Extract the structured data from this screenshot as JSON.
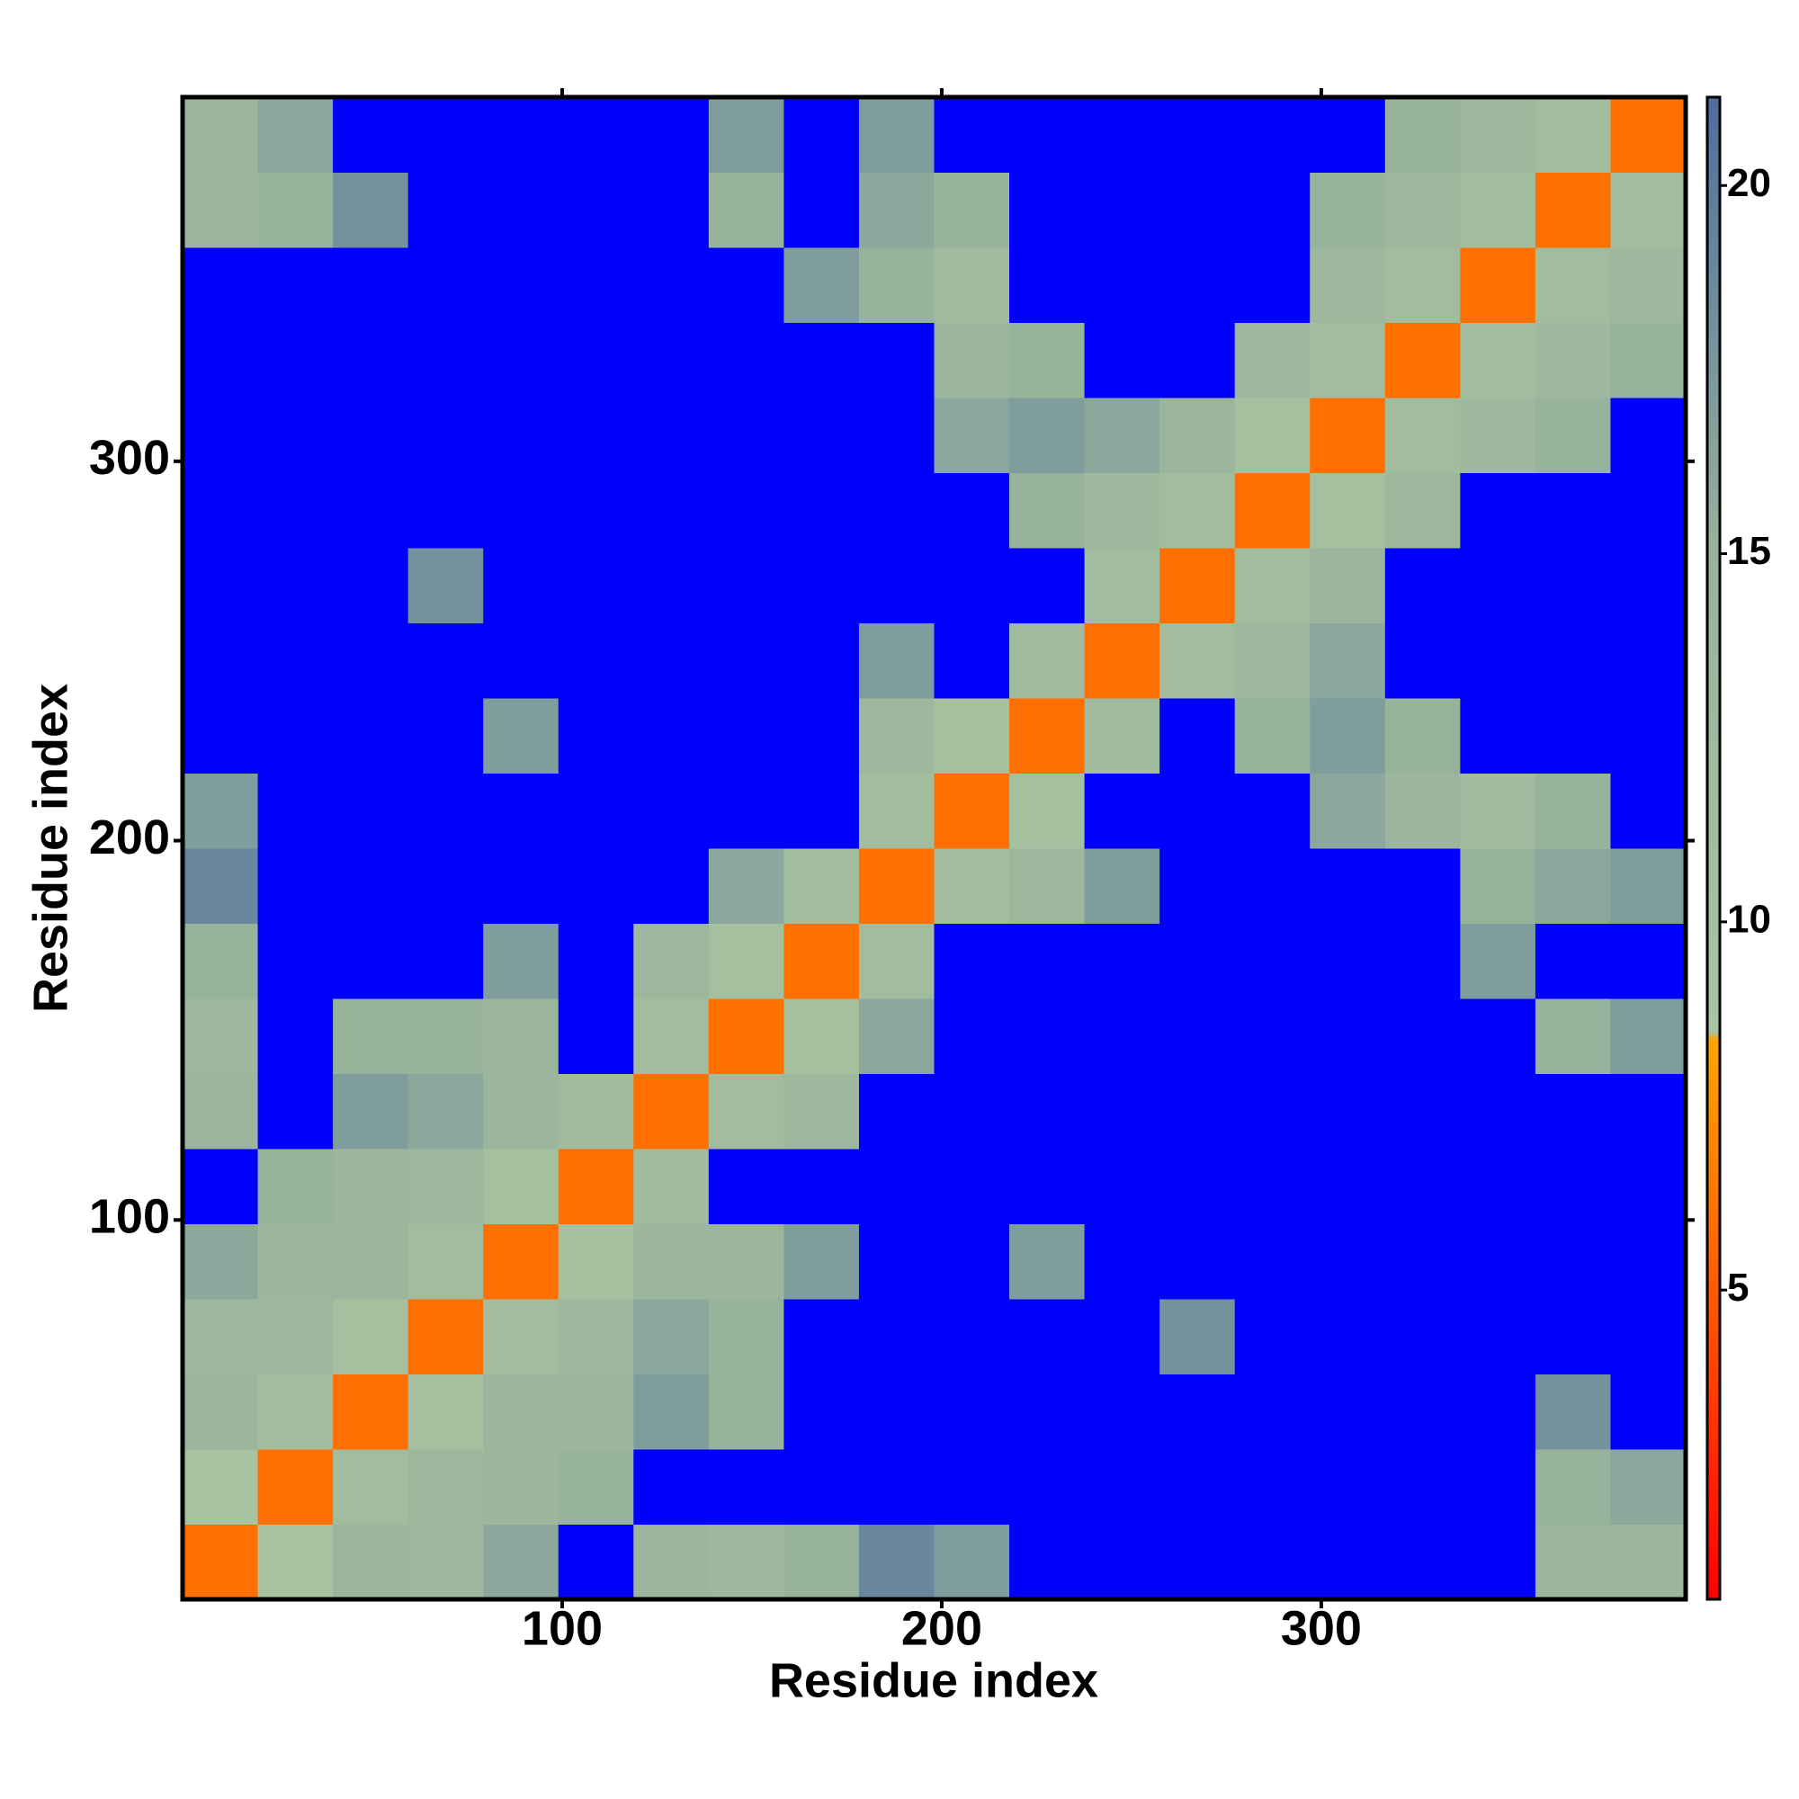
{
  "chart_data": {
    "type": "heatmap",
    "xlabel": "Residue index",
    "ylabel": "Residue index",
    "xlim": [
      0,
      396
    ],
    "ylim": [
      0,
      396
    ],
    "xticks": [
      100,
      200,
      300
    ],
    "yticks": [
      100,
      200,
      300
    ],
    "xbins": [
      0,
      19.8,
      39.6,
      59.4,
      79.2,
      99,
      118.8,
      138.6,
      158.4,
      178.2,
      198,
      217.8,
      237.6,
      257.4,
      277.2,
      297,
      316.8,
      336.6,
      356.4,
      376.2,
      396
    ],
    "ybins": [
      0,
      19.8,
      39.6,
      59.4,
      79.2,
      99,
      118.8,
      138.6,
      158.4,
      178.2,
      198,
      217.8,
      237.6,
      257.4,
      277.2,
      297,
      316.8,
      336.6,
      356.4,
      376.2,
      396
    ],
    "z": [
      [
        6,
        9,
        14,
        13,
        16,
        25,
        14,
        13,
        15,
        19,
        17,
        25,
        25,
        25,
        25,
        25,
        25,
        25,
        14,
        14
      ],
      [
        9,
        6,
        11,
        13,
        14,
        15,
        25,
        25,
        25,
        25,
        25,
        25,
        25,
        25,
        25,
        25,
        25,
        25,
        15,
        16
      ],
      [
        14,
        11,
        6,
        10,
        14,
        14,
        17,
        15,
        25,
        25,
        25,
        25,
        25,
        25,
        25,
        25,
        25,
        25,
        18,
        25
      ],
      [
        13,
        13,
        10,
        6,
        11,
        13,
        16,
        15,
        25,
        25,
        25,
        25,
        25,
        18,
        25,
        25,
        25,
        25,
        25,
        25
      ],
      [
        16,
        14,
        14,
        11,
        6,
        10,
        14,
        14,
        17,
        25,
        25,
        17,
        25,
        25,
        25,
        25,
        25,
        25,
        25,
        25
      ],
      [
        25,
        15,
        14,
        13,
        10,
        6,
        12,
        25,
        25,
        25,
        25,
        25,
        25,
        25,
        25,
        25,
        25,
        25,
        25,
        25
      ],
      [
        14,
        25,
        17,
        16,
        14,
        12,
        6,
        11,
        13,
        25,
        25,
        25,
        25,
        25,
        25,
        25,
        25,
        25,
        25,
        25
      ],
      [
        13,
        25,
        15,
        15,
        14,
        25,
        11,
        6,
        10,
        16,
        25,
        25,
        25,
        25,
        25,
        25,
        25,
        25,
        15,
        17
      ],
      [
        15,
        25,
        25,
        25,
        17,
        25,
        13,
        10,
        6,
        11,
        25,
        25,
        25,
        25,
        25,
        25,
        25,
        17,
        25,
        25
      ],
      [
        19,
        25,
        25,
        25,
        25,
        25,
        25,
        16,
        11,
        6,
        11,
        13,
        17,
        25,
        25,
        25,
        25,
        15,
        16,
        17
      ],
      [
        17,
        25,
        25,
        25,
        25,
        25,
        25,
        25,
        25,
        11,
        6,
        10,
        25,
        25,
        25,
        16,
        14,
        12,
        15,
        25
      ],
      [
        25,
        25,
        25,
        25,
        17,
        25,
        25,
        25,
        25,
        13,
        10,
        6,
        12,
        25,
        15,
        17,
        15,
        25,
        25,
        25
      ],
      [
        25,
        25,
        25,
        25,
        25,
        25,
        25,
        25,
        25,
        17,
        25,
        12,
        6,
        11,
        13,
        16,
        25,
        25,
        25,
        25
      ],
      [
        25,
        25,
        25,
        18,
        25,
        25,
        25,
        25,
        25,
        25,
        25,
        25,
        11,
        6,
        11,
        14,
        25,
        25,
        25,
        25
      ],
      [
        25,
        25,
        25,
        25,
        25,
        25,
        25,
        25,
        25,
        25,
        25,
        15,
        13,
        11,
        6,
        10,
        13,
        25,
        25,
        25
      ],
      [
        25,
        25,
        25,
        25,
        25,
        25,
        25,
        25,
        25,
        25,
        16,
        17,
        16,
        14,
        10,
        6,
        11,
        13,
        15,
        25
      ],
      [
        25,
        25,
        25,
        25,
        25,
        25,
        25,
        25,
        25,
        25,
        14,
        15,
        25,
        25,
        13,
        11,
        6,
        11,
        13,
        15
      ],
      [
        25,
        25,
        25,
        25,
        25,
        25,
        25,
        25,
        17,
        15,
        12,
        25,
        25,
        25,
        25,
        13,
        11,
        6,
        11,
        13
      ],
      [
        14,
        15,
        18,
        25,
        25,
        25,
        25,
        15,
        25,
        16,
        15,
        25,
        25,
        25,
        25,
        15,
        13,
        11,
        6,
        11
      ],
      [
        14,
        16,
        25,
        25,
        25,
        25,
        25,
        17,
        25,
        17,
        25,
        25,
        25,
        25,
        25,
        25,
        15,
        13,
        11,
        6
      ]
    ],
    "clim": [
      0.8,
      21.2
    ],
    "cticks": [
      5,
      10,
      15,
      20
    ],
    "colorscale": [
      {
        "value": 0.8,
        "color": "#ff0000"
      },
      {
        "value": 5,
        "color": "#ff5a00"
      },
      {
        "value": 8.4,
        "color": "#ffa500"
      },
      {
        "value": 8.5,
        "color": "#a9c4a0"
      },
      {
        "value": 15,
        "color": "#98b39c"
      },
      {
        "value": 21.2,
        "color": "#4d6e9e"
      }
    ],
    "over_color": "#0000ff"
  }
}
